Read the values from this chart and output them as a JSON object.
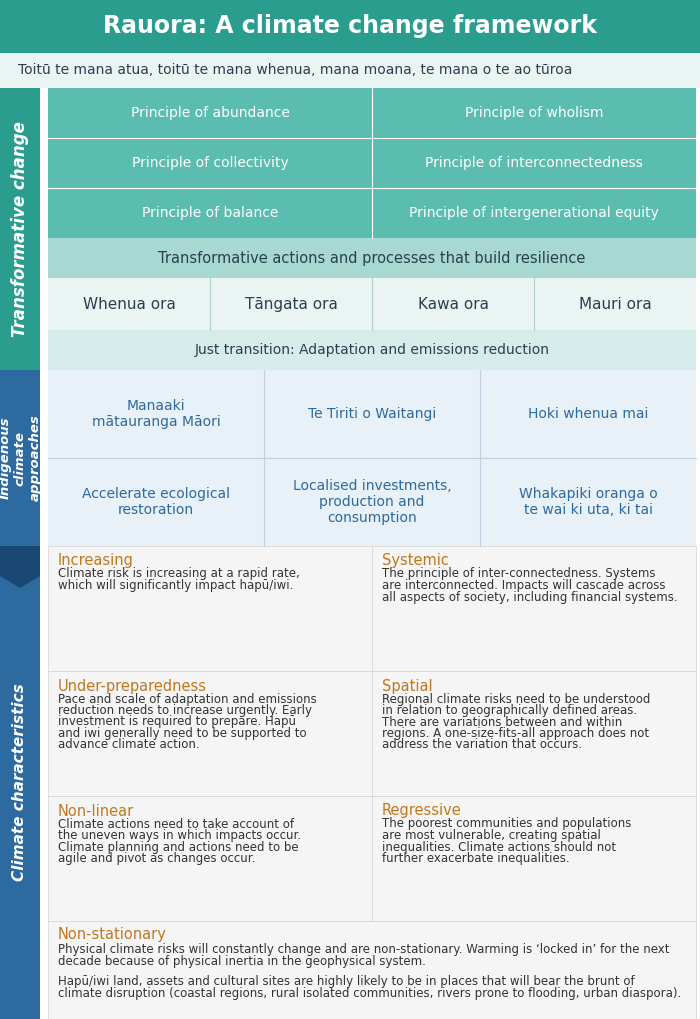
{
  "title": "Rauora: A climate change framework",
  "subtitle": "Toitū te mana atua, toitū te mana whenua, mana moana, te mana o te ao tūroa",
  "title_bg": "#2a9d8f",
  "subtitle_bg": "#eaf4f2",
  "title_color": "#ffffff",
  "subtitle_color": "#2c3e50",
  "section1_label": "Transformative change",
  "section1_label_bg": "#2a9d8f",
  "section2_label": "Indigenous\nclimate\napproaches",
  "section2_label_bg": "#2d6a9f",
  "section3_label": "Climate characteristics",
  "section3_label_bg": "#2d6a9f",
  "tc_grid_bg": "#5bbcb0",
  "tc_grid_cells": [
    [
      "Principle of abundance",
      "Principle of wholism"
    ],
    [
      "Principle of collectivity",
      "Principle of interconnectedness"
    ],
    [
      "Principle of balance",
      "Principle of intergenerational equity"
    ]
  ],
  "tc_resilience_bg": "#a8d8d2",
  "tc_resilience_text": "Transformative actions and processes that build resilience",
  "tc_ora_bg": "#eaf4f2",
  "tc_ora_cells": [
    "Whenua ora",
    "Tāngata ora",
    "Kawa ora",
    "Mauri ora"
  ],
  "tc_just_bg": "#d5eceb",
  "tc_just_text": "Just transition: Adaptation and emissions reduction",
  "ica_bg": "#e8f0f8",
  "ica_row1": [
    "Manaaki\nmātauranga Māori",
    "Te Tiriti o Waitangi",
    "Hoki whenua mai"
  ],
  "ica_row2": [
    "Accelerate ecological\nrestoration",
    "Localised investments,\nproduction and\nconsumption",
    "Whakapiki oranga o\nte wai ki uta, ki tai"
  ],
  "ica_text_color": "#2d6a9f",
  "cc_bg": "#f5f5f5",
  "cc_title_color": "#c07820",
  "cc_text_color": "#333333",
  "cc_items": [
    {
      "title": "Increasing",
      "body": "Climate risk is increasing at a rapid rate,\nwhich will significantly impact hapū/iwi."
    },
    {
      "title": "Systemic",
      "body": "The principle of inter-connectedness. Systems\nare interconnected. Impacts will cascade across\nall aspects of society, including financial systems."
    },
    {
      "title": "Under-preparedness",
      "body": "Pace and scale of adaptation and emissions\nreduction needs to increase urgently. Early\ninvestment is required to prepare. Hapū\nand iwi generally need to be supported to\nadvance climate action."
    },
    {
      "title": "Spatial",
      "body": "Regional climate risks need to be understood\nin relation to geographically defined areas.\nThere are variations between and within\nregions. A one-size-fits-all approach does not\naddress the variation that occurs."
    },
    {
      "title": "Non-linear",
      "body": "Climate actions need to take account of\nthe uneven ways in which impacts occur.\nClimate planning and actions need to be\nagile and pivot as changes occur."
    },
    {
      "title": "Regressive",
      "body": "The poorest communities and populations\nare most vulnerable, creating spatial\ninequalities. Climate actions should not\nfurther exacerbate inequalities."
    }
  ],
  "cc_nonstat_title": "Non-stationary",
  "cc_nonstat_body1": "Physical climate risks will constantly change and are non-stationary. Warming is ‘locked in’ for the next\ndecade because of physical inertia in the geophysical system.",
  "cc_nonstat_body2": "Hapū/iwi land, assets and cultural sites are highly likely to be in places that will bear the brunt of\nclimate disruption (coastal regions, rural isolated communities, rivers prone to flooding, urban diaspora)."
}
